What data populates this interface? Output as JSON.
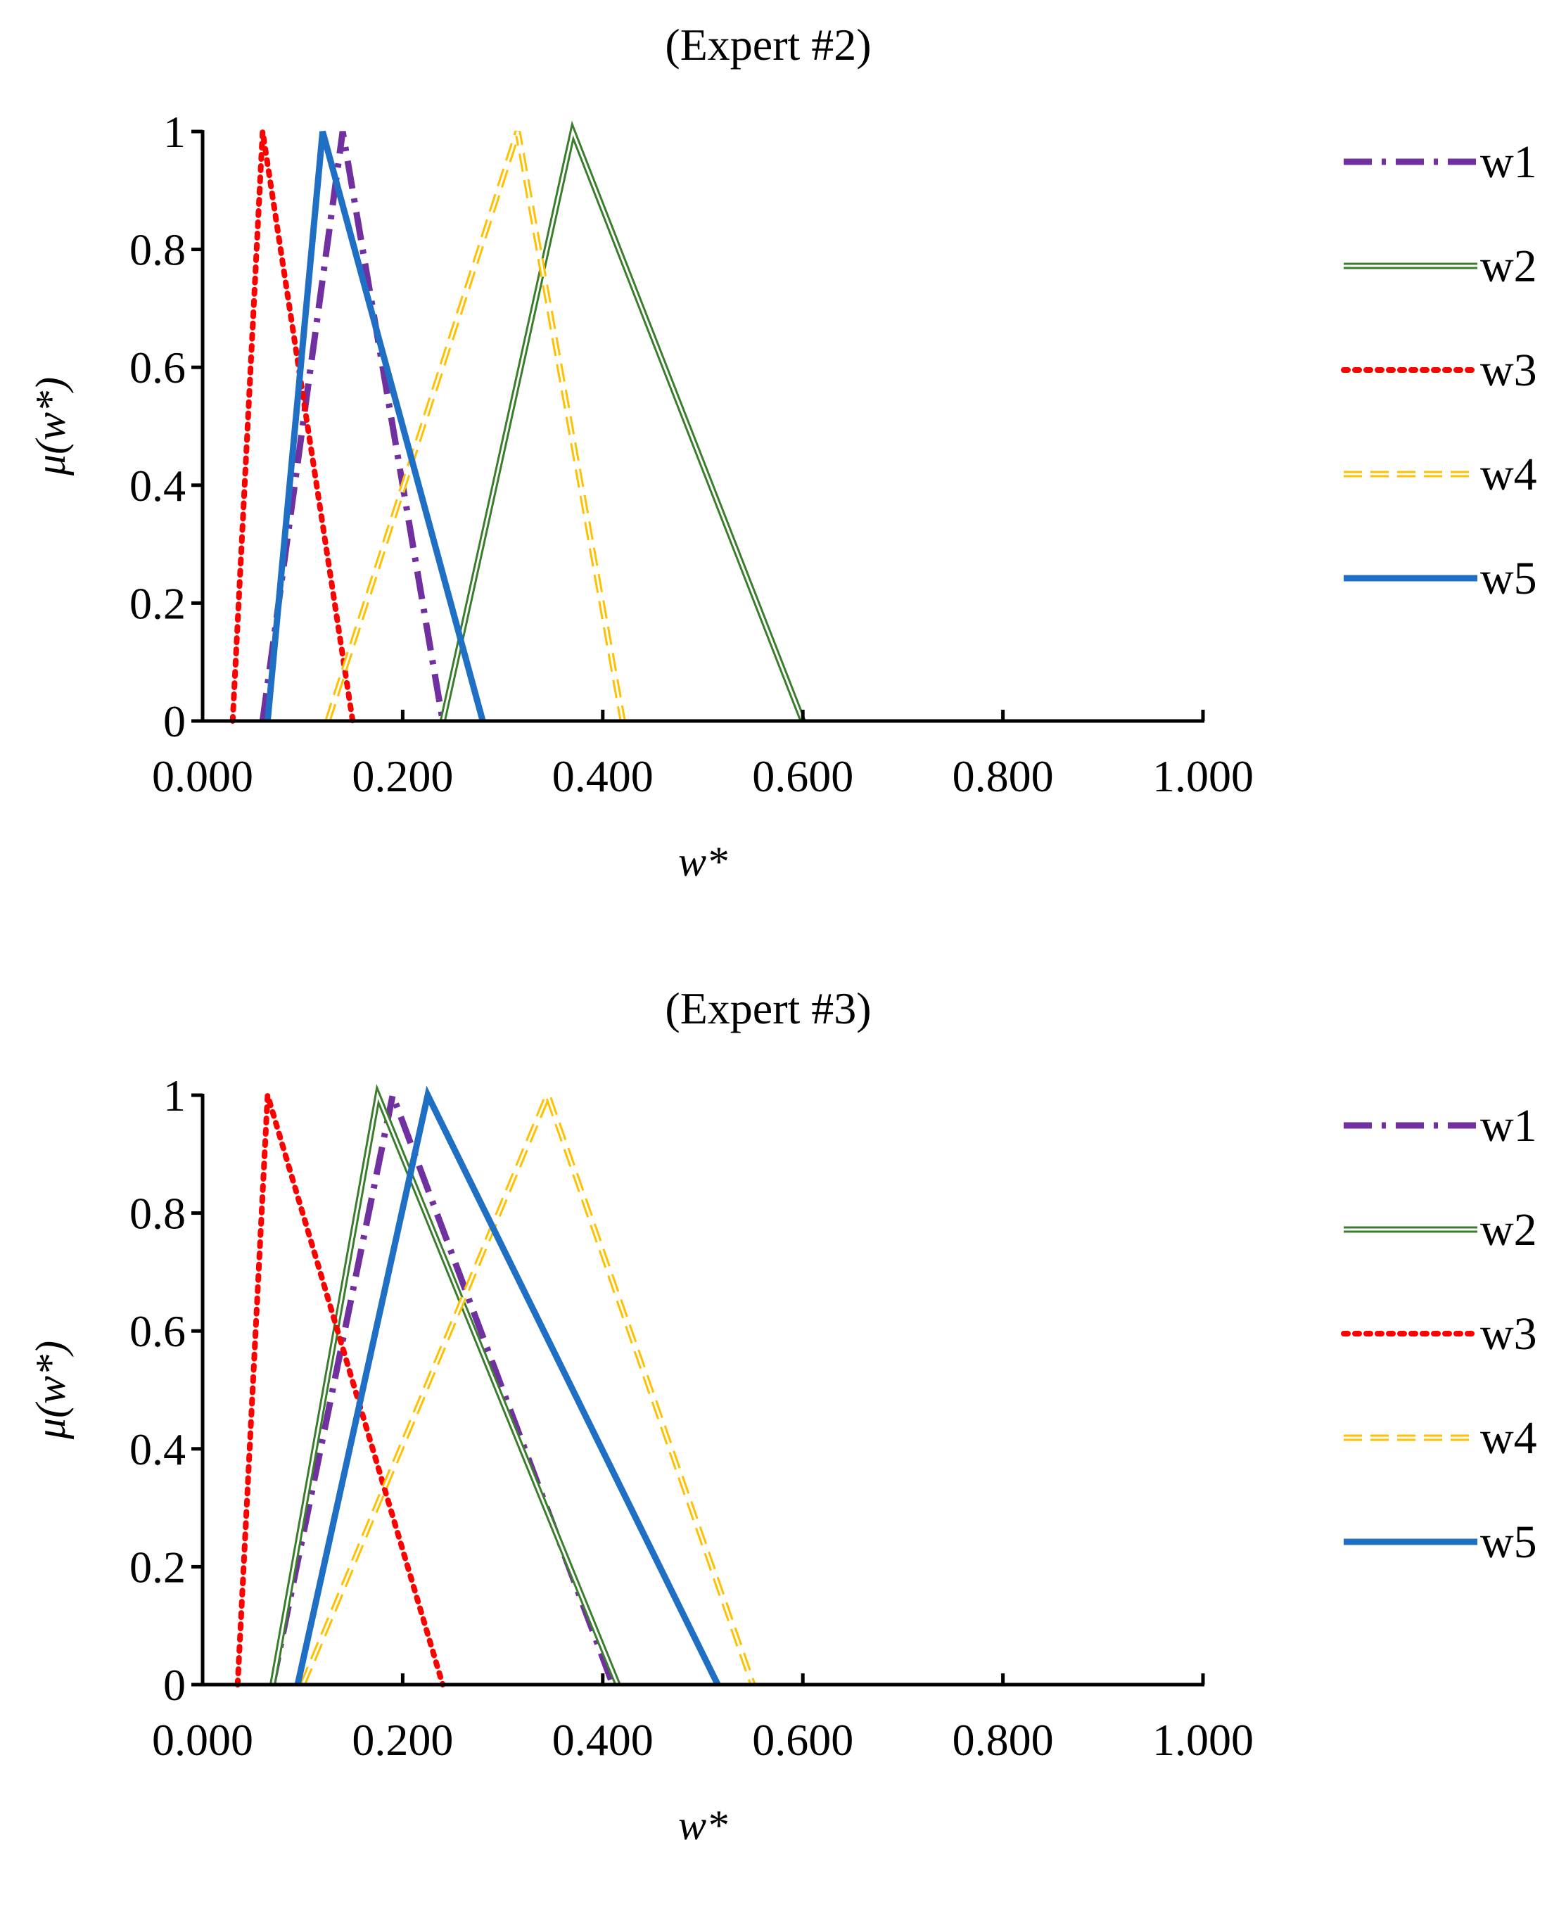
{
  "chart_data": [
    {
      "type": "line",
      "title": "(Expert #2)",
      "xlabel": "w*",
      "ylabel": "μ(w*)",
      "xlim": [
        0,
        1
      ],
      "ylim": [
        0,
        1
      ],
      "x_ticks": [
        "0.000",
        "0.200",
        "0.400",
        "0.600",
        "0.800",
        "1.000"
      ],
      "y_ticks": [
        "0",
        "0.2",
        "0.4",
        "0.6",
        "0.8",
        "1"
      ],
      "legend_position": "right",
      "series": [
        {
          "name": "w1",
          "style": "dash-dot",
          "color": "#7030a0",
          "x": [
            0.06,
            0.14,
            0.24
          ],
          "y": [
            0,
            1,
            0
          ]
        },
        {
          "name": "w2",
          "style": "double",
          "color": "#3a7d2c",
          "x": [
            0.24,
            0.37,
            0.6
          ],
          "y": [
            0,
            1,
            0
          ]
        },
        {
          "name": "w3",
          "style": "dotted",
          "color": "#ff0000",
          "x": [
            0.03,
            0.06,
            0.15
          ],
          "y": [
            0,
            1,
            0
          ]
        },
        {
          "name": "w4",
          "style": "dashed-double",
          "color": "#ffc000",
          "x": [
            0.125,
            0.315,
            0.42
          ],
          "y": [
            0,
            1,
            0
          ]
        },
        {
          "name": "w5",
          "style": "solid",
          "color": "#1f6fc4",
          "x": [
            0.065,
            0.12,
            0.28
          ],
          "y": [
            0,
            1,
            0
          ]
        }
      ]
    },
    {
      "type": "line",
      "title": "(Expert #3)",
      "xlabel": "w*",
      "ylabel": "μ(w*)",
      "xlim": [
        0,
        1
      ],
      "ylim": [
        0,
        1
      ],
      "x_ticks": [
        "0.000",
        "0.200",
        "0.400",
        "0.600",
        "0.800",
        "1.000"
      ],
      "y_ticks": [
        "0",
        "0.2",
        "0.4",
        "0.6",
        "0.8",
        "1"
      ],
      "legend_position": "right",
      "series": [
        {
          "name": "w1",
          "style": "dash-dot",
          "color": "#7030a0",
          "x": [
            0.07,
            0.19,
            0.41
          ],
          "y": [
            0,
            1,
            0
          ]
        },
        {
          "name": "w2",
          "style": "double",
          "color": "#3a7d2c",
          "x": [
            0.07,
            0.175,
            0.415
          ],
          "y": [
            0,
            1,
            0
          ]
        },
        {
          "name": "w3",
          "style": "dotted",
          "color": "#ff0000",
          "x": [
            0.035,
            0.065,
            0.24
          ],
          "y": [
            0,
            1,
            0
          ]
        },
        {
          "name": "w4",
          "style": "dashed-double",
          "color": "#ffc000",
          "x": [
            0.1,
            0.345,
            0.55
          ],
          "y": [
            0,
            1,
            0
          ]
        },
        {
          "name": "w5",
          "style": "solid",
          "color": "#1f6fc4",
          "x": [
            0.095,
            0.225,
            0.515
          ],
          "y": [
            0,
            1,
            0
          ]
        }
      ]
    }
  ]
}
